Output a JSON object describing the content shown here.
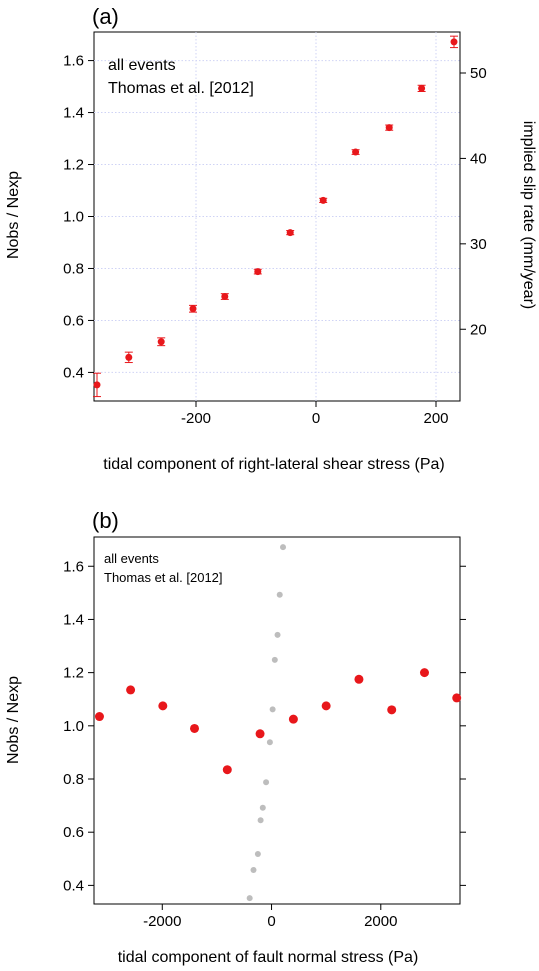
{
  "chart_data": [
    {
      "type": "scatter",
      "panel_label": "(a)",
      "annotation": [
        "all events",
        "Thomas et al. [2012]"
      ],
      "xlabel": "tidal component of right-lateral shear stress (Pa)",
      "ylabel": "Nobs / Nexp",
      "y2label": "implied slip rate (mm/year)",
      "xlim": [
        -370,
        240
      ],
      "ylim": [
        0.29,
        1.71
      ],
      "y2lim": [
        11.6,
        54.8
      ],
      "xticks": [
        -200,
        0,
        200
      ],
      "xtick_labels": [
        "-200",
        "0",
        "200"
      ],
      "yticks": [
        0.4,
        0.6,
        0.8,
        1.0,
        1.2,
        1.4,
        1.6
      ],
      "ytick_labels": [
        "0.4",
        "0.6",
        "0.8",
        "1.0",
        "1.2",
        "1.4",
        "1.6"
      ],
      "y2ticks": [
        20,
        30,
        40,
        50
      ],
      "y2tick_labels": [
        "20",
        "30",
        "40",
        "50"
      ],
      "grid": true,
      "marker_color": "#e8171b",
      "points": [
        {
          "x": -365,
          "y": 0.352,
          "err": 0.045
        },
        {
          "x": -312,
          "y": 0.458,
          "err": 0.02
        },
        {
          "x": -258,
          "y": 0.518,
          "err": 0.015
        },
        {
          "x": -205,
          "y": 0.645,
          "err": 0.013
        },
        {
          "x": -152,
          "y": 0.692,
          "err": 0.011
        },
        {
          "x": -97,
          "y": 0.788,
          "err": 0.009
        },
        {
          "x": -43,
          "y": 0.938,
          "err": 0.008
        },
        {
          "x": 12,
          "y": 1.062,
          "err": 0.008
        },
        {
          "x": 66,
          "y": 1.248,
          "err": 0.009
        },
        {
          "x": 122,
          "y": 1.342,
          "err": 0.01
        },
        {
          "x": 176,
          "y": 1.493,
          "err": 0.012
        },
        {
          "x": 230,
          "y": 1.672,
          "err": 0.022
        }
      ]
    },
    {
      "type": "scatter",
      "panel_label": "(b)",
      "annotation": [
        "all events",
        "Thomas et al. [2012]"
      ],
      "xlabel": "tidal component of fault normal stress (Pa)",
      "ylabel": "Nobs / Nexp",
      "xlim": [
        -3250,
        3450
      ],
      "ylim": [
        0.33,
        1.71
      ],
      "xticks": [
        -2000,
        0,
        2000
      ],
      "xtick_labels": [
        "-2000",
        "0",
        "2000"
      ],
      "yticks": [
        0.4,
        0.6,
        0.8,
        1.0,
        1.2,
        1.4,
        1.6
      ],
      "ytick_labels": [
        "0.4",
        "0.6",
        "0.8",
        "1.0",
        "1.2",
        "1.4",
        "1.6"
      ],
      "grid": false,
      "marker_color": "#e8171b",
      "background_color": "#bdbdbd",
      "points": [
        {
          "x": -3150,
          "y": 1.035
        },
        {
          "x": -2580,
          "y": 1.135
        },
        {
          "x": -1990,
          "y": 1.075
        },
        {
          "x": -1410,
          "y": 0.99
        },
        {
          "x": -810,
          "y": 0.835
        },
        {
          "x": -210,
          "y": 0.97
        },
        {
          "x": 400,
          "y": 1.025
        },
        {
          "x": 1000,
          "y": 1.075
        },
        {
          "x": 1600,
          "y": 1.175
        },
        {
          "x": 2200,
          "y": 1.06
        },
        {
          "x": 2800,
          "y": 1.2
        },
        {
          "x": 3390,
          "y": 1.105
        }
      ],
      "background_points": [
        {
          "x": -400,
          "y": 0.352
        },
        {
          "x": -330,
          "y": 0.458
        },
        {
          "x": -250,
          "y": 0.518
        },
        {
          "x": -200,
          "y": 0.645
        },
        {
          "x": -160,
          "y": 0.692
        },
        {
          "x": -100,
          "y": 0.788
        },
        {
          "x": -30,
          "y": 0.938
        },
        {
          "x": 20,
          "y": 1.062
        },
        {
          "x": 60,
          "y": 1.248
        },
        {
          "x": 110,
          "y": 1.342
        },
        {
          "x": 150,
          "y": 1.493
        },
        {
          "x": 210,
          "y": 1.672
        }
      ]
    }
  ]
}
